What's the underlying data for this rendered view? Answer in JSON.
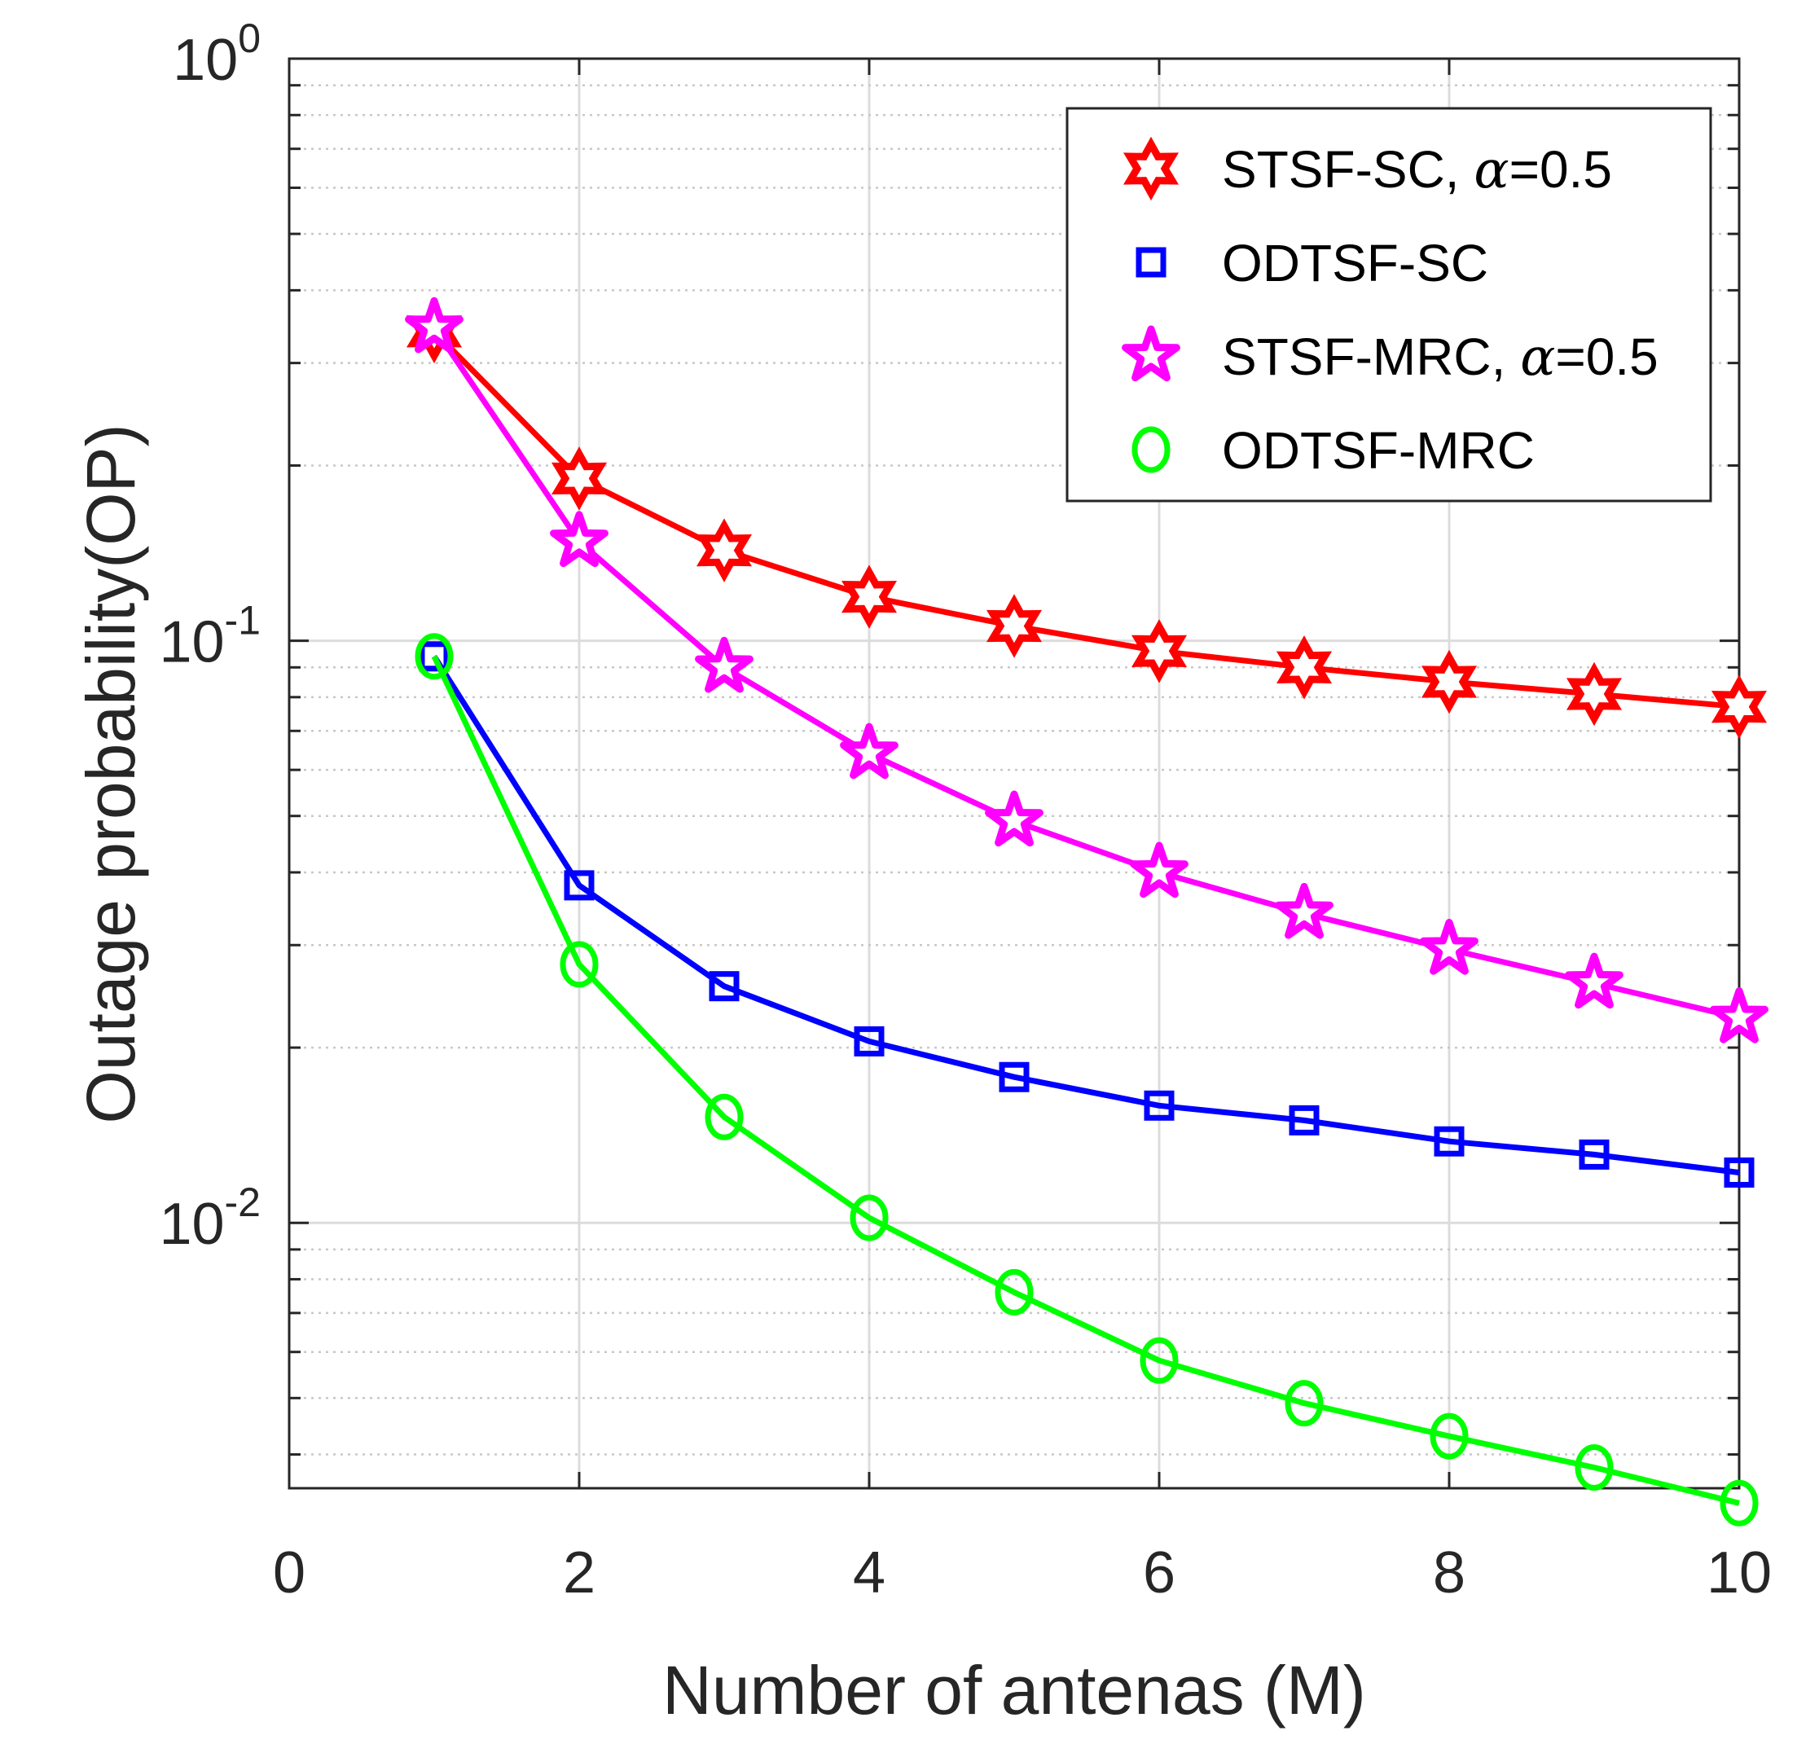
{
  "chart_data": {
    "type": "line",
    "title": "",
    "xlabel": "Number of antenas (M)",
    "ylabel": "Outage probability(OP)",
    "xlim": [
      0,
      10
    ],
    "ylim": [
      0.0035,
      1
    ],
    "yscale": "log",
    "grid": true,
    "x_ticks": [
      {
        "value": 0,
        "label": "0"
      },
      {
        "value": 2,
        "label": "2"
      },
      {
        "value": 4,
        "label": "4"
      },
      {
        "value": 6,
        "label": "6"
      },
      {
        "value": 8,
        "label": "8"
      },
      {
        "value": 10,
        "label": "10"
      }
    ],
    "y_ticks": [
      {
        "value": 1,
        "base": "10",
        "exp": "0"
      },
      {
        "value": 0.1,
        "base": "10",
        "exp": "-1"
      },
      {
        "value": 0.01,
        "base": "10",
        "exp": "-2"
      }
    ],
    "legend_position": "top-right",
    "series": [
      {
        "name": "STSF-SC, α=0.5",
        "label_prefix": "STSF-SC, ",
        "label_greek": "α",
        "label_suffix": "=0.5",
        "color": "#ff0000",
        "marker": "hexagram",
        "x": [
          1,
          2,
          3,
          4,
          5,
          6,
          7,
          8,
          9,
          10
        ],
        "values": [
          0.34,
          0.19,
          0.143,
          0.119,
          0.106,
          0.096,
          0.09,
          0.085,
          0.081,
          0.077
        ]
      },
      {
        "name": "ODTSF-SC",
        "label_prefix": "ODTSF-SC",
        "label_greek": "",
        "label_suffix": "",
        "color": "#0000ff",
        "marker": "square",
        "x": [
          1,
          2,
          3,
          4,
          5,
          6,
          7,
          8,
          9,
          10
        ],
        "values": [
          0.094,
          0.038,
          0.0255,
          0.0205,
          0.0178,
          0.0159,
          0.015,
          0.0138,
          0.0131,
          0.0122
        ]
      },
      {
        "name": "STSF-MRC, α=0.5",
        "label_prefix": "STSF-MRC, ",
        "label_greek": "α",
        "label_suffix": "=0.5",
        "color": "#ff00ff",
        "marker": "pentagram",
        "x": [
          1,
          2,
          3,
          4,
          5,
          6,
          7,
          8,
          9,
          10
        ],
        "values": [
          0.345,
          0.148,
          0.09,
          0.064,
          0.049,
          0.04,
          0.034,
          0.0295,
          0.0258,
          0.0225
        ]
      },
      {
        "name": "ODTSF-MRC",
        "label_prefix": "ODTSF-MRC",
        "label_greek": "",
        "label_suffix": "",
        "color": "#00ff00",
        "marker": "circle",
        "x": [
          1,
          2,
          3,
          4,
          5,
          6,
          7,
          8,
          9,
          10
        ],
        "values": [
          0.094,
          0.0278,
          0.0152,
          0.0102,
          0.0076,
          0.0058,
          0.0049,
          0.0043,
          0.0038,
          0.0033
        ]
      }
    ]
  }
}
